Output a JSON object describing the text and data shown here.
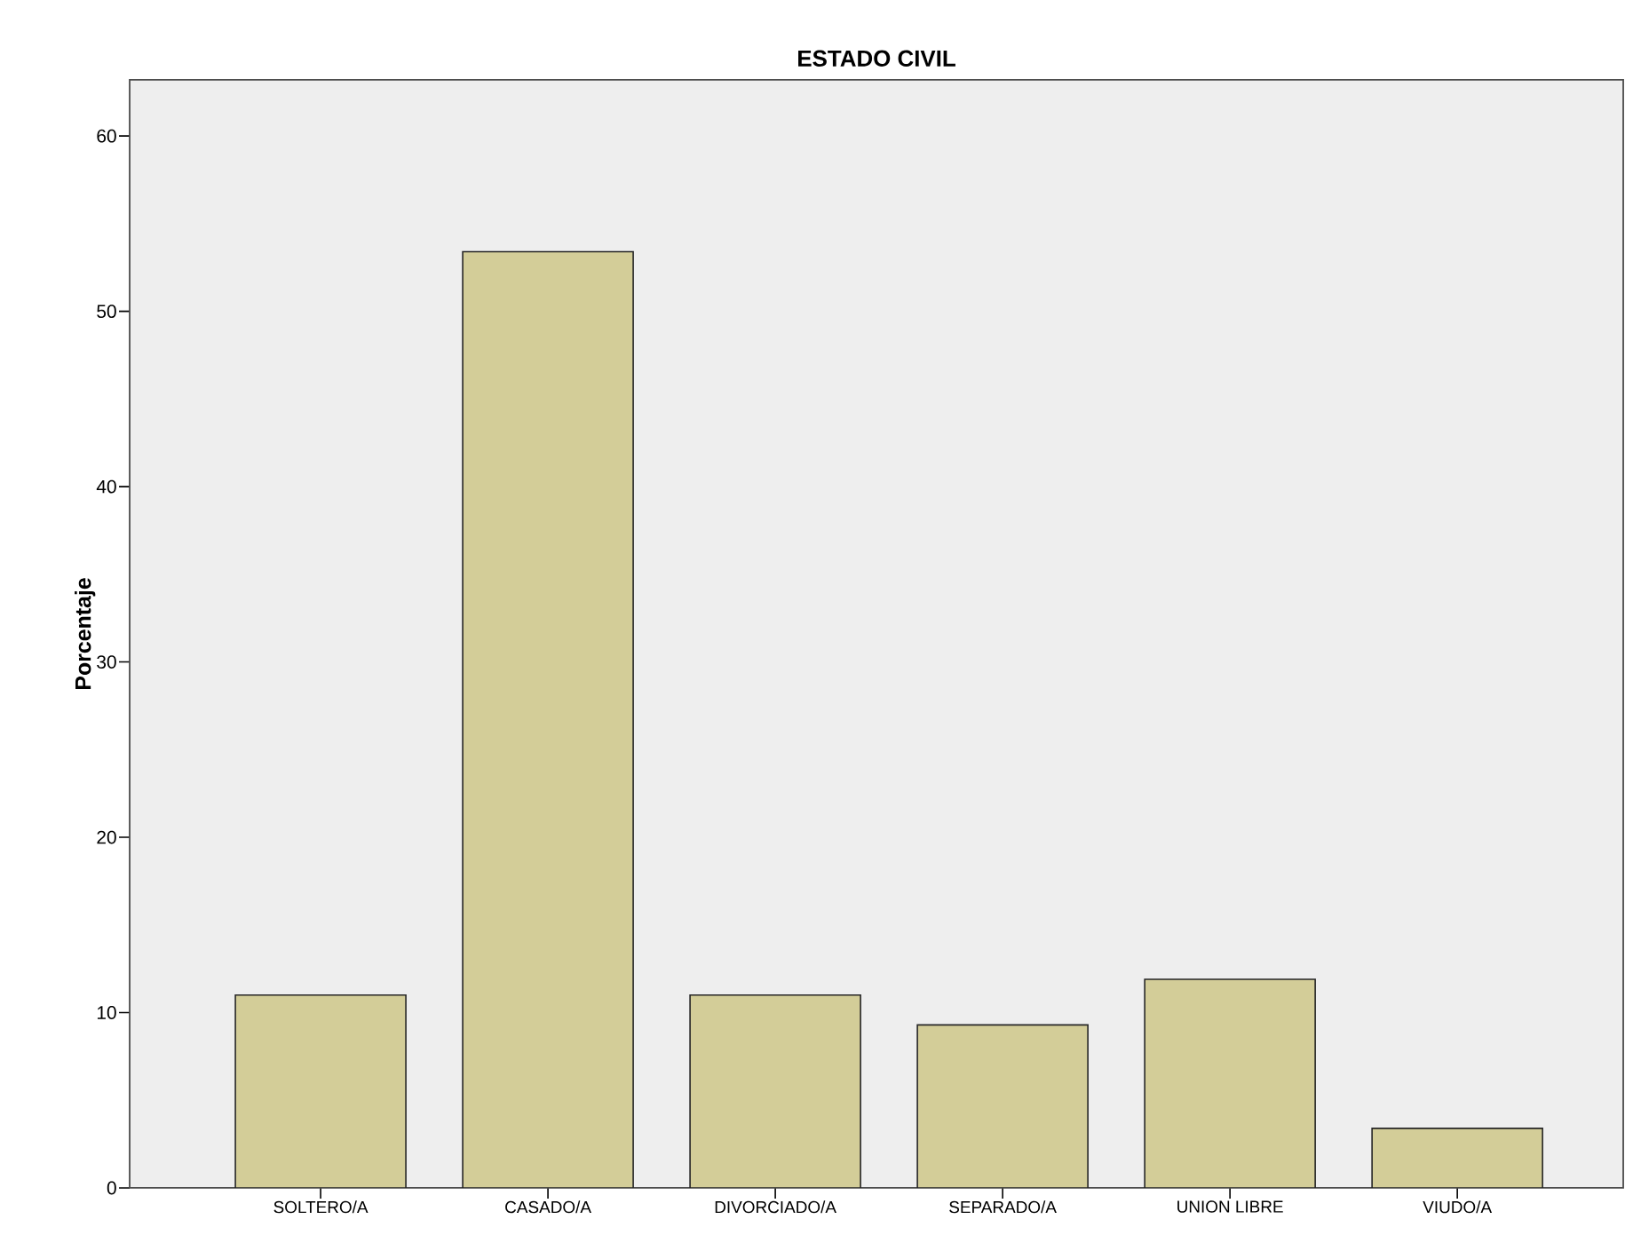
{
  "chart_data": {
    "type": "bar",
    "title": "ESTADO CIVIL",
    "ylabel": "Porcentaje",
    "categories": [
      "SOLTERO/A",
      "CASADO/A",
      "DIVORCIADO/A",
      "SEPARADO/A",
      "UNION LIBRE",
      "VIUDO/A"
    ],
    "values": [
      11.0,
      53.4,
      11.0,
      9.3,
      11.9,
      3.4
    ],
    "color": "#d3cd98",
    "ylim": [
      0,
      63.2
    ],
    "yticks": [
      0,
      10,
      20,
      30,
      40,
      50,
      60
    ],
    "grid": false
  }
}
